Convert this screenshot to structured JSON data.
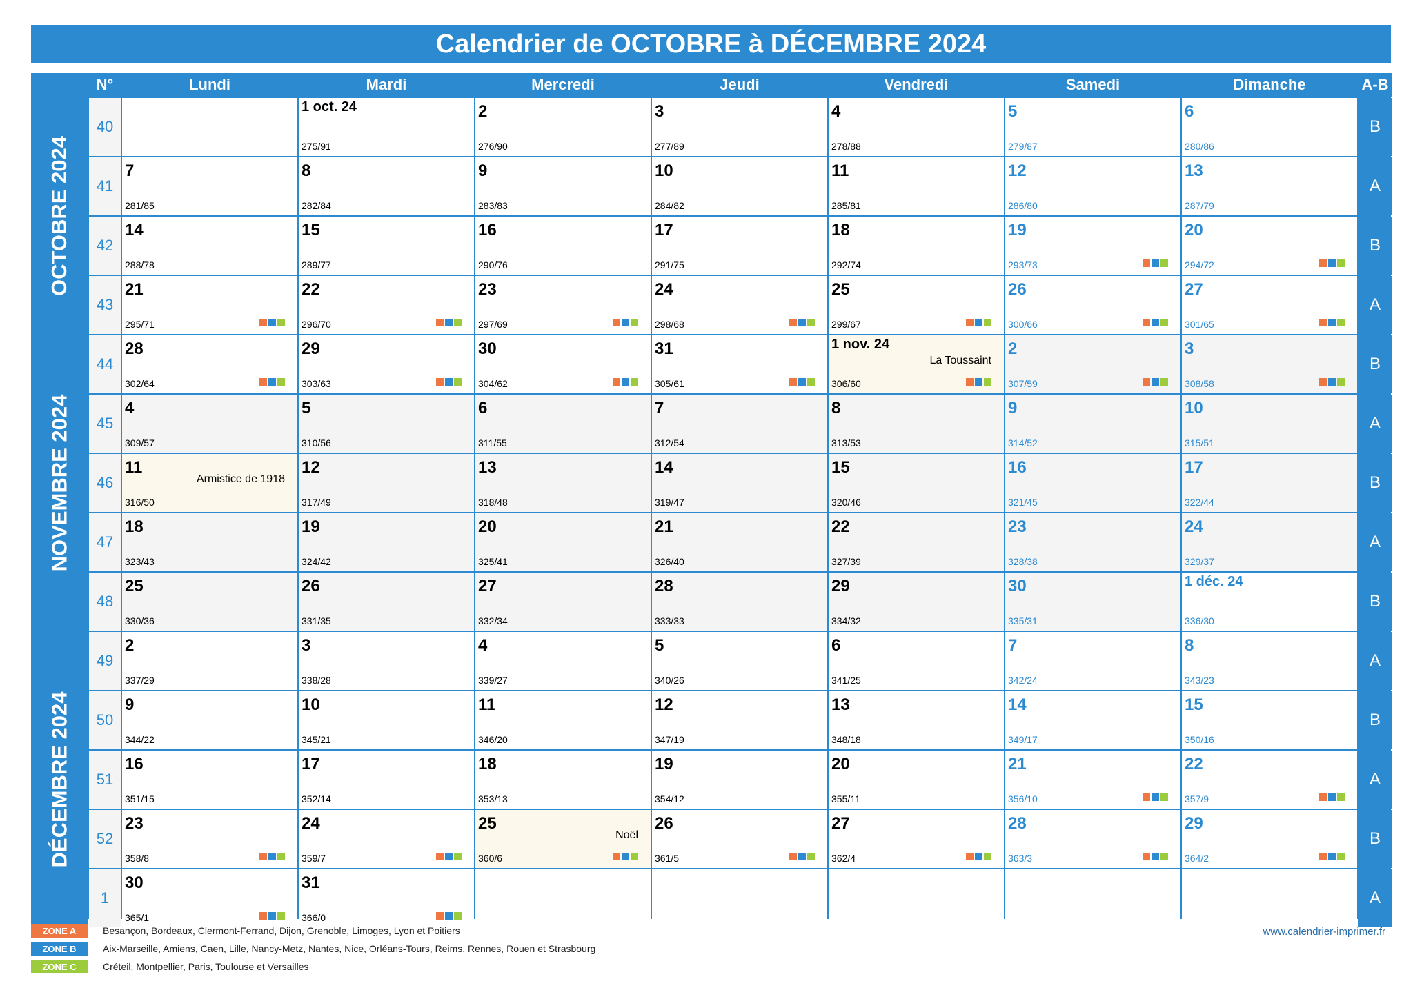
{
  "title": "Calendrier de OCTOBRE à DÉCEMBRE 2024",
  "colors": {
    "accent": "#2b8ad0",
    "zone_a": "#ef7742",
    "zone_b": "#2b8ad0",
    "zone_c": "#9ccb3d",
    "holiday_bg": "#fdf8ec",
    "shade_bg": "#f4f4f4"
  },
  "headers": {
    "week_no": "N°",
    "ab": "A-B",
    "days": [
      "Lundi",
      "Mardi",
      "Mercredi",
      "Jeudi",
      "Vendredi",
      "Samedi",
      "Dimanche"
    ]
  },
  "months": [
    {
      "label": "OCTOBRE 2024",
      "rows": 4
    },
    {
      "label": "NOVEMBRE 2024",
      "rows": 5
    },
    {
      "label": "DÉCEMBRE 2024",
      "rows": 5
    }
  ],
  "weeks": [
    {
      "wk": "40",
      "ab": "B",
      "days": [
        null,
        {
          "day": "1 oct. 24",
          "num": "275/91",
          "first": true
        },
        {
          "day": "2",
          "num": "276/90"
        },
        {
          "day": "3",
          "num": "277/89"
        },
        {
          "day": "4",
          "num": "278/88"
        },
        {
          "day": "5",
          "num": "279/87",
          "we": true
        },
        {
          "day": "6",
          "num": "280/86",
          "we": true
        }
      ]
    },
    {
      "wk": "41",
      "ab": "A",
      "days": [
        {
          "day": "7",
          "num": "281/85"
        },
        {
          "day": "8",
          "num": "282/84"
        },
        {
          "day": "9",
          "num": "283/83"
        },
        {
          "day": "10",
          "num": "284/82"
        },
        {
          "day": "11",
          "num": "285/81"
        },
        {
          "day": "12",
          "num": "286/80",
          "we": true
        },
        {
          "day": "13",
          "num": "287/79",
          "we": true
        }
      ]
    },
    {
      "wk": "42",
      "ab": "B",
      "days": [
        {
          "day": "14",
          "num": "288/78"
        },
        {
          "day": "15",
          "num": "289/77"
        },
        {
          "day": "16",
          "num": "290/76"
        },
        {
          "day": "17",
          "num": "291/75"
        },
        {
          "day": "18",
          "num": "292/74"
        },
        {
          "day": "19",
          "num": "293/73",
          "we": true,
          "zones": true
        },
        {
          "day": "20",
          "num": "294/72",
          "we": true,
          "zones": true
        }
      ]
    },
    {
      "wk": "43",
      "ab": "A",
      "days": [
        {
          "day": "21",
          "num": "295/71",
          "zones": true
        },
        {
          "day": "22",
          "num": "296/70",
          "zones": true
        },
        {
          "day": "23",
          "num": "297/69",
          "zones": true
        },
        {
          "day": "24",
          "num": "298/68",
          "zones": true
        },
        {
          "day": "25",
          "num": "299/67",
          "zones": true
        },
        {
          "day": "26",
          "num": "300/66",
          "we": true,
          "zones": true
        },
        {
          "day": "27",
          "num": "301/65",
          "we": true,
          "zones": true
        }
      ]
    },
    {
      "wk": "44",
      "ab": "B",
      "days": [
        {
          "day": "28",
          "num": "302/64",
          "zones": true
        },
        {
          "day": "29",
          "num": "303/63",
          "zones": true
        },
        {
          "day": "30",
          "num": "304/62",
          "zones": true
        },
        {
          "day": "31",
          "num": "305/61",
          "zones": true
        },
        {
          "day": "1 nov. 24",
          "num": "306/60",
          "first": true,
          "holiday": "La Toussaint",
          "zones": true
        },
        {
          "day": "2",
          "num": "307/59",
          "we": true,
          "shade": true,
          "zones": true
        },
        {
          "day": "3",
          "num": "308/58",
          "we": true,
          "shade": true,
          "zones": true
        }
      ]
    },
    {
      "wk": "45",
      "ab": "A",
      "days": [
        {
          "day": "4",
          "num": "309/57",
          "shade": true
        },
        {
          "day": "5",
          "num": "310/56",
          "shade": true
        },
        {
          "day": "6",
          "num": "311/55",
          "shade": true
        },
        {
          "day": "7",
          "num": "312/54",
          "shade": true
        },
        {
          "day": "8",
          "num": "313/53",
          "shade": true
        },
        {
          "day": "9",
          "num": "314/52",
          "we": true,
          "shade": true
        },
        {
          "day": "10",
          "num": "315/51",
          "we": true,
          "shade": true
        }
      ]
    },
    {
      "wk": "46",
      "ab": "B",
      "days": [
        {
          "day": "11",
          "num": "316/50",
          "holiday": "Armistice de 1918"
        },
        {
          "day": "12",
          "num": "317/49",
          "shade": true
        },
        {
          "day": "13",
          "num": "318/48",
          "shade": true
        },
        {
          "day": "14",
          "num": "319/47",
          "shade": true
        },
        {
          "day": "15",
          "num": "320/46",
          "shade": true
        },
        {
          "day": "16",
          "num": "321/45",
          "we": true,
          "shade": true
        },
        {
          "day": "17",
          "num": "322/44",
          "we": true,
          "shade": true
        }
      ]
    },
    {
      "wk": "47",
      "ab": "A",
      "days": [
        {
          "day": "18",
          "num": "323/43",
          "shade": true
        },
        {
          "day": "19",
          "num": "324/42",
          "shade": true
        },
        {
          "day": "20",
          "num": "325/41",
          "shade": true
        },
        {
          "day": "21",
          "num": "326/40",
          "shade": true
        },
        {
          "day": "22",
          "num": "327/39",
          "shade": true
        },
        {
          "day": "23",
          "num": "328/38",
          "we": true,
          "shade": true
        },
        {
          "day": "24",
          "num": "329/37",
          "we": true,
          "shade": true
        }
      ]
    },
    {
      "wk": "48",
      "ab": "B",
      "days": [
        {
          "day": "25",
          "num": "330/36",
          "shade": true
        },
        {
          "day": "26",
          "num": "331/35",
          "shade": true
        },
        {
          "day": "27",
          "num": "332/34",
          "shade": true
        },
        {
          "day": "28",
          "num": "333/33",
          "shade": true
        },
        {
          "day": "29",
          "num": "334/32",
          "shade": true
        },
        {
          "day": "30",
          "num": "335/31",
          "we": true,
          "shade": true
        },
        {
          "day": "1 déc. 24",
          "num": "336/30",
          "we": true,
          "first": true
        }
      ]
    },
    {
      "wk": "49",
      "ab": "A",
      "days": [
        {
          "day": "2",
          "num": "337/29"
        },
        {
          "day": "3",
          "num": "338/28"
        },
        {
          "day": "4",
          "num": "339/27"
        },
        {
          "day": "5",
          "num": "340/26"
        },
        {
          "day": "6",
          "num": "341/25"
        },
        {
          "day": "7",
          "num": "342/24",
          "we": true
        },
        {
          "day": "8",
          "num": "343/23",
          "we": true
        }
      ]
    },
    {
      "wk": "50",
      "ab": "B",
      "days": [
        {
          "day": "9",
          "num": "344/22"
        },
        {
          "day": "10",
          "num": "345/21"
        },
        {
          "day": "11",
          "num": "346/20"
        },
        {
          "day": "12",
          "num": "347/19"
        },
        {
          "day": "13",
          "num": "348/18"
        },
        {
          "day": "14",
          "num": "349/17",
          "we": true
        },
        {
          "day": "15",
          "num": "350/16",
          "we": true
        }
      ]
    },
    {
      "wk": "51",
      "ab": "A",
      "days": [
        {
          "day": "16",
          "num": "351/15"
        },
        {
          "day": "17",
          "num": "352/14"
        },
        {
          "day": "18",
          "num": "353/13"
        },
        {
          "day": "19",
          "num": "354/12"
        },
        {
          "day": "20",
          "num": "355/11"
        },
        {
          "day": "21",
          "num": "356/10",
          "we": true,
          "zones": true
        },
        {
          "day": "22",
          "num": "357/9",
          "we": true,
          "zones": true
        }
      ]
    },
    {
      "wk": "52",
      "ab": "B",
      "days": [
        {
          "day": "23",
          "num": "358/8",
          "zones": true
        },
        {
          "day": "24",
          "num": "359/7",
          "zones": true
        },
        {
          "day": "25",
          "num": "360/6",
          "holiday": "Noël",
          "zones": true
        },
        {
          "day": "26",
          "num": "361/5",
          "zones": true
        },
        {
          "day": "27",
          "num": "362/4",
          "zones": true
        },
        {
          "day": "28",
          "num": "363/3",
          "we": true,
          "zones": true
        },
        {
          "day": "29",
          "num": "364/2",
          "we": true,
          "zones": true
        }
      ]
    },
    {
      "wk": "1",
      "ab": "A",
      "days": [
        {
          "day": "30",
          "num": "365/1",
          "zones": true
        },
        {
          "day": "31",
          "num": "366/0",
          "zones": true
        },
        null,
        null,
        null,
        null,
        null
      ]
    }
  ],
  "legend": [
    {
      "badge": "ZONE A",
      "color": "#ef7742",
      "text": "Besançon, Bordeaux, Clermont-Ferrand, Dijon, Grenoble, Limoges, Lyon et Poitiers"
    },
    {
      "badge": "ZONE B",
      "color": "#2b8ad0",
      "text": "Aix-Marseille, Amiens, Caen, Lille, Nancy-Metz, Nantes, Nice, Orléans-Tours, Reims, Rennes, Rouen et Strasbourg"
    },
    {
      "badge": "ZONE C",
      "color": "#9ccb3d",
      "text": "Créteil, Montpellier, Paris, Toulouse et Versailles"
    }
  ],
  "website": "www.calendrier-imprimer.fr"
}
